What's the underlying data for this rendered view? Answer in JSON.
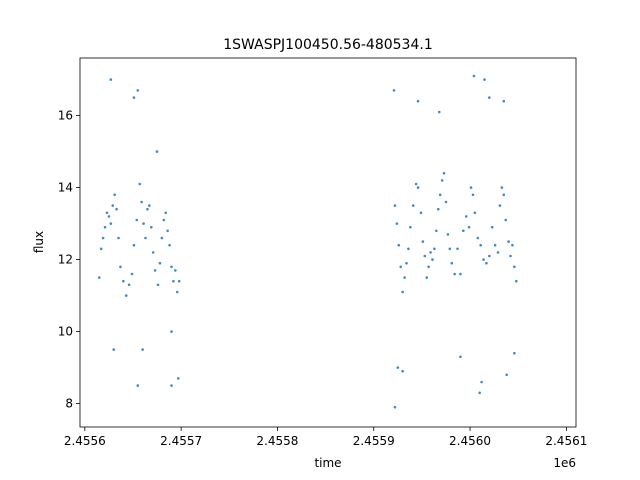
{
  "chart_data": {
    "type": "scatter",
    "title": "1SWASPJ100450.56-480534.1",
    "xlabel": "time",
    "ylabel": "flux",
    "x_offset_label": "1e6",
    "xlim": [
      2455595,
      2456110
    ],
    "ylim": [
      7.35,
      17.6
    ],
    "x_ticks": [
      2455600,
      2455700,
      2455800,
      2455900,
      2456000,
      2456100
    ],
    "x_tick_labels": [
      "2.4556",
      "2.4557",
      "2.4558",
      "2.4559",
      "2.4560",
      "2.4561"
    ],
    "y_ticks": [
      8,
      10,
      12,
      14,
      16
    ],
    "y_tick_labels": [
      "8",
      "10",
      "12",
      "14",
      "16"
    ],
    "grid": false,
    "legend": "none",
    "point_color": "#1f77b4",
    "series": [
      {
        "values": [
          [
            2455615,
            11.5
          ],
          [
            2455617,
            12.3
          ],
          [
            2455619,
            12.6
          ],
          [
            2455621,
            12.9
          ],
          [
            2455623,
            13.3
          ],
          [
            2455625,
            13.2
          ],
          [
            2455627,
            13.0
          ],
          [
            2455629,
            13.5
          ],
          [
            2455631,
            13.8
          ],
          [
            2455633,
            13.4
          ],
          [
            2455635,
            12.6
          ],
          [
            2455637,
            11.8
          ],
          [
            2455640,
            11.4
          ],
          [
            2455643,
            11.0
          ],
          [
            2455646,
            11.3
          ],
          [
            2455649,
            11.6
          ],
          [
            2455651,
            12.4
          ],
          [
            2455654,
            13.1
          ],
          [
            2455657,
            14.1
          ],
          [
            2455659,
            13.6
          ],
          [
            2455661,
            13.0
          ],
          [
            2455663,
            12.6
          ],
          [
            2455665,
            13.4
          ],
          [
            2455667,
            13.5
          ],
          [
            2455669,
            12.9
          ],
          [
            2455671,
            12.2
          ],
          [
            2455673,
            11.7
          ],
          [
            2455676,
            11.3
          ],
          [
            2455678,
            11.9
          ],
          [
            2455680,
            12.6
          ],
          [
            2455682,
            13.1
          ],
          [
            2455684,
            13.3
          ],
          [
            2455686,
            12.8
          ],
          [
            2455688,
            12.4
          ],
          [
            2455690,
            11.8
          ],
          [
            2455692,
            11.4
          ],
          [
            2455694,
            11.7
          ],
          [
            2455696,
            11.1
          ],
          [
            2455698,
            11.4
          ],
          [
            2455627,
            17.0
          ],
          [
            2455651,
            16.5
          ],
          [
            2455655,
            16.7
          ],
          [
            2455675,
            15.0
          ],
          [
            2455660,
            9.5
          ],
          [
            2455655,
            8.5
          ],
          [
            2455690,
            10.0
          ],
          [
            2455697,
            8.7
          ],
          [
            2455630,
            9.5
          ],
          [
            2455690,
            8.5
          ],
          [
            2455922,
            13.5
          ],
          [
            2455924,
            13.0
          ],
          [
            2455926,
            12.4
          ],
          [
            2455928,
            11.8
          ],
          [
            2455930,
            11.1
          ],
          [
            2455932,
            11.5
          ],
          [
            2455934,
            11.9
          ],
          [
            2455936,
            12.3
          ],
          [
            2455938,
            12.9
          ],
          [
            2455941,
            13.5
          ],
          [
            2455944,
            14.1
          ],
          [
            2455946,
            14.0
          ],
          [
            2455949,
            13.3
          ],
          [
            2455951,
            12.5
          ],
          [
            2455953,
            12.1
          ],
          [
            2455955,
            11.5
          ],
          [
            2455957,
            11.8
          ],
          [
            2455959,
            12.2
          ],
          [
            2455961,
            12.0
          ],
          [
            2455963,
            12.3
          ],
          [
            2455965,
            12.8
          ],
          [
            2455967,
            13.4
          ],
          [
            2455969,
            13.8
          ],
          [
            2455971,
            14.2
          ],
          [
            2455973,
            14.4
          ],
          [
            2455975,
            13.6
          ],
          [
            2455977,
            12.7
          ],
          [
            2455979,
            12.3
          ],
          [
            2455981,
            11.9
          ],
          [
            2455984,
            11.6
          ],
          [
            2455987,
            12.3
          ],
          [
            2455990,
            11.6
          ],
          [
            2455993,
            12.8
          ],
          [
            2455996,
            13.2
          ],
          [
            2455999,
            12.9
          ],
          [
            2456001,
            14.0
          ],
          [
            2456003,
            13.8
          ],
          [
            2456005,
            13.3
          ],
          [
            2456008,
            12.6
          ],
          [
            2456011,
            12.4
          ],
          [
            2456014,
            12.0
          ],
          [
            2456017,
            11.9
          ],
          [
            2456020,
            12.1
          ],
          [
            2456023,
            12.9
          ],
          [
            2456026,
            12.4
          ],
          [
            2456029,
            12.2
          ],
          [
            2456031,
            13.5
          ],
          [
            2456033,
            14.0
          ],
          [
            2456035,
            13.8
          ],
          [
            2456037,
            13.1
          ],
          [
            2456040,
            12.5
          ],
          [
            2456042,
            12.1
          ],
          [
            2456044,
            12.4
          ],
          [
            2456046,
            11.8
          ],
          [
            2456048,
            11.4
          ],
          [
            2455921,
            16.7
          ],
          [
            2455946,
            16.4
          ],
          [
            2455968,
            16.1
          ],
          [
            2456004,
            17.1
          ],
          [
            2456015,
            17.0
          ],
          [
            2456020,
            16.5
          ],
          [
            2456035,
            16.4
          ],
          [
            2455922,
            7.9
          ],
          [
            2455925,
            9.0
          ],
          [
            2455930,
            8.9
          ],
          [
            2455990,
            9.3
          ],
          [
            2456010,
            8.3
          ],
          [
            2456012,
            8.6
          ],
          [
            2456038,
            8.8
          ],
          [
            2456046,
            9.4
          ]
        ]
      }
    ]
  }
}
